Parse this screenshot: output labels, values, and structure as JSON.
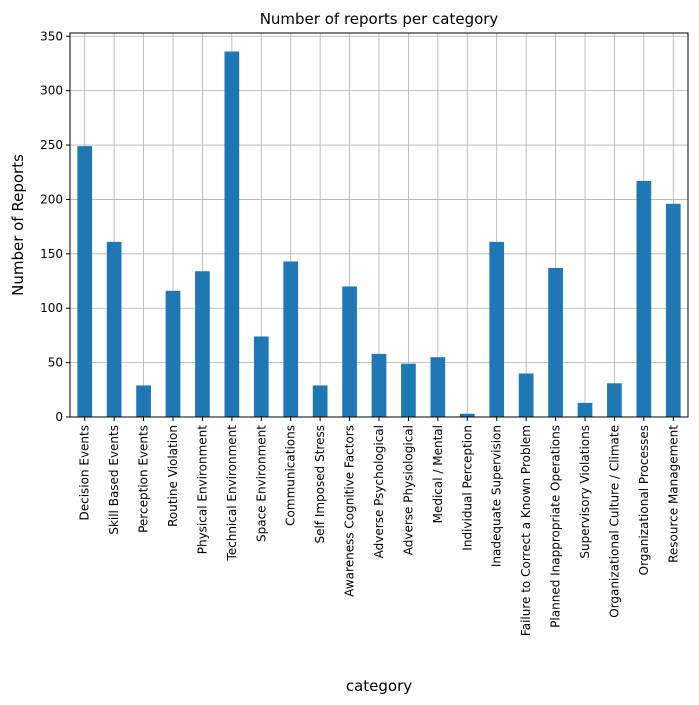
{
  "chart_data": {
    "type": "bar",
    "title": "Number of reports per category",
    "xlabel": "category",
    "ylabel": "Number of Reports",
    "ylim": [
      0,
      353
    ],
    "yticks": [
      0,
      50,
      100,
      150,
      200,
      250,
      300,
      350
    ],
    "grid": true,
    "bar_color": "#1f77b4",
    "categories": [
      "Decision Events",
      "Skill Based Events",
      "Perception Events",
      "Routine Violation",
      "Physical Environment",
      "Technical Environment",
      "Space Environment",
      "Communications",
      "Self Imposed Stress",
      "Awareness Cognitive Factors",
      "Adverse Psychological",
      "Adverse Physiological",
      "Medical / Mental",
      "Individual Perception",
      "Inadequate Supervision",
      "Failure to Correct a Known Problem",
      "Planned Inappropriate Operations",
      "Supervisory Violations",
      "Organizational Culture / Climate",
      "Organizational Processes",
      "Resource Management"
    ],
    "values": [
      249,
      161,
      29,
      116,
      134,
      336,
      74,
      143,
      29,
      120,
      58,
      49,
      55,
      3,
      161,
      40,
      137,
      13,
      31,
      217,
      196
    ]
  }
}
